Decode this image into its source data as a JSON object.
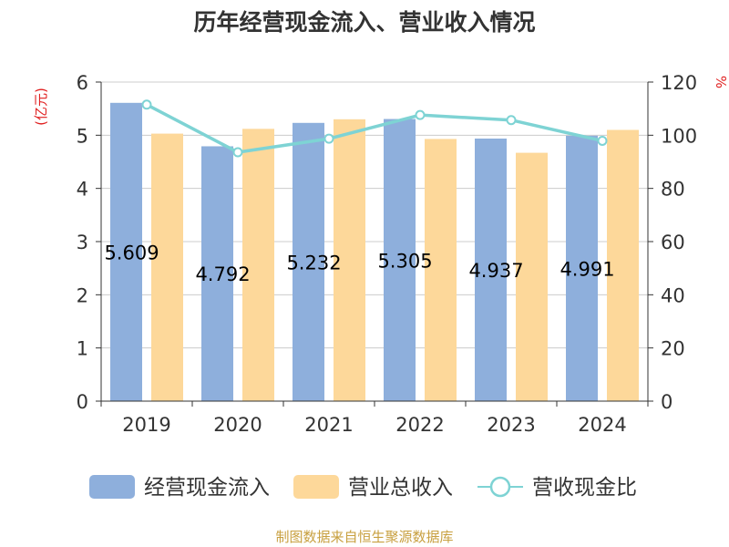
{
  "chart_data": {
    "type": "bar",
    "title": "历年经营现金流入、营业收入情况",
    "left_unit": "(亿元)",
    "right_unit": "%",
    "categories": [
      "2019",
      "2020",
      "2021",
      "2022",
      "2023",
      "2024"
    ],
    "series": [
      {
        "name": "经营现金流入",
        "type": "bar",
        "axis": "left",
        "color": "#8eafdc",
        "values": [
          5.609,
          4.792,
          5.232,
          5.305,
          4.937,
          4.991
        ]
      },
      {
        "name": "营业总收入",
        "type": "bar",
        "axis": "left",
        "color": "#fdd89a",
        "values": [
          5.03,
          5.12,
          5.3,
          4.93,
          4.67,
          5.1
        ]
      },
      {
        "name": "营收现金比",
        "type": "line",
        "axis": "right",
        "color": "#7ed3d4",
        "values": [
          111.5,
          93.6,
          98.7,
          107.6,
          105.7,
          97.9
        ]
      }
    ],
    "data_labels": [
      "5.609",
      "4.792",
      "5.232",
      "5.305",
      "4.937",
      "4.991"
    ],
    "ylim_left": [
      0,
      6
    ],
    "yticks_left": [
      "0",
      "1",
      "2",
      "3",
      "4",
      "5",
      "6"
    ],
    "ylim_right": [
      0,
      120
    ],
    "yticks_right": [
      "0",
      "20",
      "40",
      "60",
      "80",
      "100",
      "120"
    ],
    "grid": true,
    "legend_position": "bottom"
  },
  "source_text": "制图数据来自恒生聚源数据库"
}
